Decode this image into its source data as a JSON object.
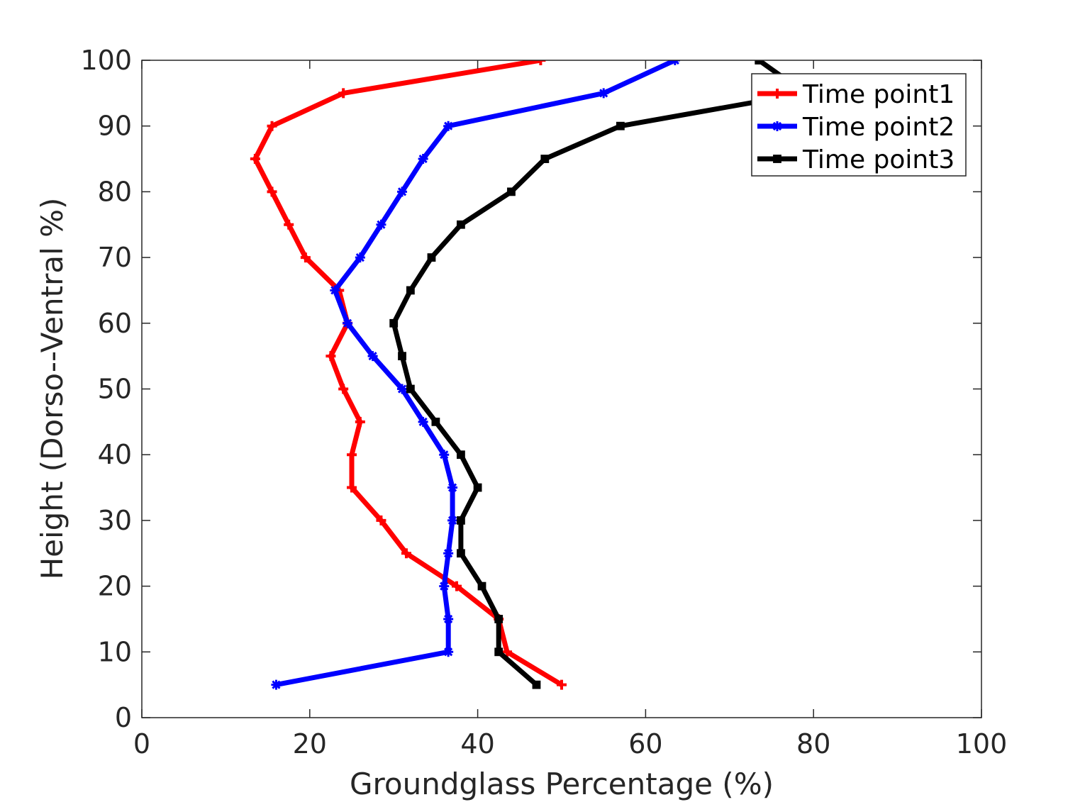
{
  "chart_data": {
    "type": "line",
    "xlabel": "Groundglass Percentage (%)",
    "ylabel": "Height (Dorso--Ventral %)",
    "xlim": [
      0,
      100
    ],
    "ylim": [
      0,
      100
    ],
    "xticks": [
      0,
      20,
      40,
      60,
      80,
      100
    ],
    "yticks": [
      0,
      10,
      20,
      30,
      40,
      50,
      60,
      70,
      80,
      90,
      100
    ],
    "grid": false,
    "legend_position": "top-right",
    "series": [
      {
        "name": "Time point1",
        "color": "#ff0000",
        "marker": "plus",
        "points": [
          [
            50.0,
            5
          ],
          [
            43.5,
            10
          ],
          [
            42.5,
            15
          ],
          [
            37.5,
            20
          ],
          [
            31.5,
            25
          ],
          [
            28.5,
            30
          ],
          [
            25.0,
            35
          ],
          [
            25.0,
            40
          ],
          [
            26.0,
            45
          ],
          [
            24.0,
            50
          ],
          [
            22.5,
            55
          ],
          [
            24.5,
            60
          ],
          [
            23.5,
            65
          ],
          [
            19.5,
            70
          ],
          [
            17.5,
            75
          ],
          [
            15.5,
            80
          ],
          [
            13.5,
            85
          ],
          [
            15.5,
            90
          ],
          [
            24.0,
            95
          ],
          [
            47.5,
            100
          ]
        ]
      },
      {
        "name": "Time point2",
        "color": "#0000ff",
        "marker": "star",
        "points": [
          [
            16.0,
            5
          ],
          [
            36.5,
            10
          ],
          [
            36.5,
            15
          ],
          [
            36.0,
            20
          ],
          [
            36.5,
            25
          ],
          [
            37.0,
            30
          ],
          [
            37.0,
            35
          ],
          [
            36.0,
            40
          ],
          [
            33.5,
            45
          ],
          [
            31.0,
            50
          ],
          [
            27.5,
            55
          ],
          [
            24.5,
            60
          ],
          [
            23.0,
            65
          ],
          [
            26.0,
            70
          ],
          [
            28.5,
            75
          ],
          [
            31.0,
            80
          ],
          [
            33.5,
            85
          ],
          [
            36.5,
            90
          ],
          [
            55.0,
            95
          ],
          [
            63.5,
            100
          ]
        ]
      },
      {
        "name": "Time point3",
        "color": "#000000",
        "marker": "square",
        "points": [
          [
            47.0,
            5
          ],
          [
            42.5,
            10
          ],
          [
            42.5,
            15
          ],
          [
            40.5,
            20
          ],
          [
            38.0,
            25
          ],
          [
            38.0,
            30
          ],
          [
            40.0,
            35
          ],
          [
            38.0,
            40
          ],
          [
            35.0,
            45
          ],
          [
            32.0,
            50
          ],
          [
            31.0,
            55
          ],
          [
            30.0,
            60
          ],
          [
            32.0,
            65
          ],
          [
            34.5,
            70
          ],
          [
            38.0,
            75
          ],
          [
            44.0,
            80
          ],
          [
            48.0,
            85
          ],
          [
            57.0,
            90
          ],
          [
            79.0,
            95
          ],
          [
            73.5,
            100
          ]
        ]
      }
    ]
  }
}
